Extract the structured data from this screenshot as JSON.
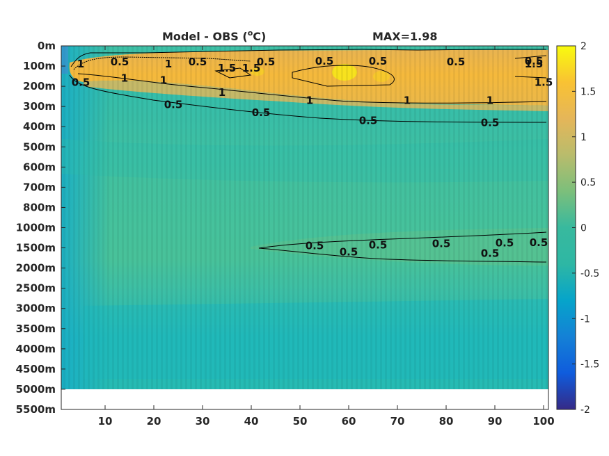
{
  "chart_data": {
    "type": "heatmap",
    "title": "Model - OBS (",
    "title_unit_sup": "o",
    "title_unit_end": "C)",
    "max_text": "MAX=1.98",
    "xlabel": "",
    "ylabel": "",
    "x_ticks": [
      "10",
      "20",
      "30",
      "40",
      "50",
      "60",
      "70",
      "80",
      "90",
      "100"
    ],
    "x_tick_values": [
      10,
      20,
      30,
      40,
      50,
      60,
      70,
      80,
      90,
      100
    ],
    "xlim": [
      1,
      101
    ],
    "y_ticks": [
      "0m",
      "100m",
      "200m",
      "300m",
      "400m",
      "500m",
      "600m",
      "700m",
      "800m",
      "1000m",
      "1500m",
      "2000m",
      "2500m",
      "3000m",
      "3500m",
      "4000m",
      "4500m",
      "5000m",
      "5500m"
    ],
    "y_axis_direction": "downward",
    "y_scale": "nonlinear depth levels",
    "data_extent_depth": "5000m",
    "colorbar": {
      "colormap": "parula",
      "clim": [
        -2,
        2
      ],
      "ticks": [
        "2",
        "1.5",
        "1",
        "0.5",
        "0",
        "-0.5",
        "-1",
        "-1.5",
        "-2"
      ],
      "tick_values": [
        2,
        1.5,
        1,
        0.5,
        0,
        -0.5,
        -1,
        -1.5,
        -2
      ]
    },
    "contour_levels": [
      0.5,
      1,
      1.5
    ],
    "contour_labels": [
      {
        "text": "0.5",
        "x": 13,
        "depth": "80m"
      },
      {
        "text": "0.5",
        "x": 29,
        "depth": "80m"
      },
      {
        "text": "0.5",
        "x": 43,
        "depth": "80m"
      },
      {
        "text": "0.5",
        "x": 55,
        "depth": "75m"
      },
      {
        "text": "0.5",
        "x": 66,
        "depth": "75m"
      },
      {
        "text": "0.5",
        "x": 82,
        "depth": "80m"
      },
      {
        "text": "0.5",
        "x": 98,
        "depth": "75m"
      },
      {
        "text": "1",
        "x": 5,
        "depth": "90m"
      },
      {
        "text": "1",
        "x": 23,
        "depth": "90m"
      },
      {
        "text": "1.5",
        "x": 35,
        "depth": "110m"
      },
      {
        "text": "1.5",
        "x": 40,
        "depth": "110m"
      },
      {
        "text": "1.5",
        "x": 98,
        "depth": "90m"
      },
      {
        "text": "0.5",
        "x": 5,
        "depth": "180m"
      },
      {
        "text": "1",
        "x": 14,
        "depth": "160m"
      },
      {
        "text": "1",
        "x": 22,
        "depth": "170m"
      },
      {
        "text": "1",
        "x": 34,
        "depth": "230m"
      },
      {
        "text": "1",
        "x": 52,
        "depth": "270m"
      },
      {
        "text": "1",
        "x": 72,
        "depth": "270m"
      },
      {
        "text": "1",
        "x": 89,
        "depth": "270m"
      },
      {
        "text": "1.5",
        "x": 100,
        "depth": "180m"
      },
      {
        "text": "0.5",
        "x": 24,
        "depth": "290m"
      },
      {
        "text": "0.5",
        "x": 42,
        "depth": "330m"
      },
      {
        "text": "0.5",
        "x": 64,
        "depth": "370m"
      },
      {
        "text": "0.5",
        "x": 89,
        "depth": "380m"
      },
      {
        "text": "0.5",
        "x": 53,
        "depth": "1450m"
      },
      {
        "text": "0.5",
        "x": 66,
        "depth": "1430m"
      },
      {
        "text": "0.5",
        "x": 79,
        "depth": "1400m"
      },
      {
        "text": "0.5",
        "x": 92,
        "depth": "1380m"
      },
      {
        "text": "0.5",
        "x": 99,
        "depth": "1370m"
      },
      {
        "text": "0.5",
        "x": 60,
        "depth": "1600m"
      },
      {
        "text": "0.5",
        "x": 89,
        "depth": "1640m"
      }
    ],
    "colors": {
      "warm_layer": "#f3b83a",
      "background_field": "#3cbfa8",
      "deep_field": "#1db9b9",
      "axis": "#262626"
    }
  }
}
